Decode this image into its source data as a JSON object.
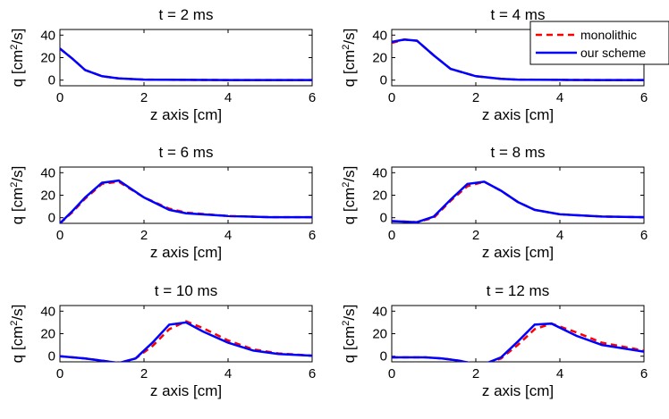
{
  "chart_data": [
    {
      "type": "line",
      "title": "t = 2 ms",
      "xlabel": "z axis [cm]",
      "ylabel_prefix": "q [cm",
      "ylabel_sup": "2",
      "ylabel_suffix": "/s]",
      "xlim": [
        0,
        6
      ],
      "ylim": [
        -5,
        45
      ],
      "xticks": [
        0,
        2,
        4,
        6
      ],
      "yticks": [
        0,
        20,
        40
      ],
      "series": [
        {
          "color": "#ff0000",
          "dash": "dashed",
          "x": [
            0,
            0.3,
            0.6,
            1.0,
            1.4,
            2.0,
            3.0,
            4.0,
            5.0,
            6.0
          ],
          "y": [
            28,
            19,
            9,
            3.5,
            1.5,
            0.5,
            0.2,
            0.1,
            0.1,
            0.1
          ]
        },
        {
          "color": "#0000ff",
          "dash": "solid",
          "x": [
            0,
            0.3,
            0.6,
            1.0,
            1.4,
            2.0,
            3.0,
            4.0,
            5.0,
            6.0
          ],
          "y": [
            28,
            19,
            9,
            3.5,
            1.5,
            0.5,
            0.2,
            0.1,
            0.1,
            0.1
          ]
        }
      ]
    },
    {
      "type": "line",
      "title": "t = 4 ms",
      "xlabel": "z axis [cm]",
      "ylabel_prefix": "q [cm",
      "ylabel_sup": "2",
      "ylabel_suffix": "/s]",
      "xlim": [
        0,
        6
      ],
      "ylim": [
        -5,
        45
      ],
      "xticks": [
        0,
        2,
        4,
        6
      ],
      "yticks": [
        0,
        20,
        40
      ],
      "legend": [
        {
          "label": "monolithic",
          "color": "#ff0000",
          "dash": "dashed"
        },
        {
          "label": "our scheme",
          "color": "#0000ff",
          "dash": "solid"
        }
      ],
      "series": [
        {
          "color": "#ff0000",
          "dash": "dashed",
          "x": [
            0,
            0.3,
            0.6,
            1.0,
            1.4,
            2.0,
            2.6,
            3.0,
            4.0,
            5.0,
            6.0
          ],
          "y": [
            33,
            36,
            35,
            22,
            10,
            3.5,
            1.2,
            0.5,
            0.2,
            0.1,
            0.1
          ]
        },
        {
          "color": "#0000ff",
          "dash": "solid",
          "x": [
            0,
            0.3,
            0.6,
            1.0,
            1.4,
            2.0,
            2.6,
            3.0,
            4.0,
            5.0,
            6.0
          ],
          "y": [
            34,
            36,
            35,
            22,
            10,
            3.5,
            1.2,
            0.5,
            0.2,
            0.1,
            0.1
          ]
        }
      ]
    },
    {
      "type": "line",
      "title": "t = 6 ms",
      "xlabel": "z axis [cm]",
      "ylabel_prefix": "q [cm",
      "ylabel_sup": "2",
      "ylabel_suffix": "/s]",
      "xlim": [
        0,
        6
      ],
      "ylim": [
        -5,
        45
      ],
      "xticks": [
        0,
        2,
        4,
        6
      ],
      "yticks": [
        0,
        20,
        40
      ],
      "series": [
        {
          "color": "#ff0000",
          "dash": "dashed",
          "x": [
            0,
            0.3,
            0.6,
            1.0,
            1.4,
            2.0,
            2.6,
            3.0,
            4.0,
            5.0,
            6.0
          ],
          "y": [
            -5,
            5,
            17,
            30,
            32,
            18,
            8,
            4.5,
            1.5,
            0.5,
            0.5
          ]
        },
        {
          "color": "#0000ff",
          "dash": "solid",
          "x": [
            0,
            0.3,
            0.6,
            1.0,
            1.4,
            2.0,
            2.6,
            3.0,
            4.0,
            5.0,
            6.0
          ],
          "y": [
            -5,
            6,
            18,
            31,
            33,
            18,
            7,
            4,
            1.5,
            0.5,
            0.5
          ]
        }
      ]
    },
    {
      "type": "line",
      "title": "t = 8 ms",
      "xlabel": "z axis [cm]",
      "ylabel_prefix": "q [cm",
      "ylabel_sup": "2",
      "ylabel_suffix": "/s]",
      "xlim": [
        0,
        6
      ],
      "ylim": [
        -5,
        45
      ],
      "xticks": [
        0,
        2,
        4,
        6
      ],
      "yticks": [
        0,
        20,
        40
      ],
      "series": [
        {
          "color": "#ff0000",
          "dash": "dashed",
          "x": [
            0,
            0.6,
            1.0,
            1.4,
            1.8,
            2.2,
            2.6,
            3.0,
            3.4,
            4.0,
            5.0,
            6.0
          ],
          "y": [
            -3,
            -4,
            0,
            15,
            28,
            32,
            24,
            14,
            7,
            3,
            1,
            0.5
          ]
        },
        {
          "color": "#0000ff",
          "dash": "solid",
          "x": [
            0,
            0.6,
            1.0,
            1.4,
            1.8,
            2.2,
            2.6,
            3.0,
            3.4,
            4.0,
            5.0,
            6.0
          ],
          "y": [
            -3,
            -4,
            1,
            16,
            30,
            32,
            24,
            14,
            7,
            3,
            1,
            0.5
          ]
        }
      ]
    },
    {
      "type": "line",
      "title": "t = 10 ms",
      "xlabel": "z axis [cm]",
      "ylabel_prefix": "q [cm",
      "ylabel_sup": "2",
      "ylabel_suffix": "/s]",
      "xlim": [
        0,
        6
      ],
      "ylim": [
        -5,
        45
      ],
      "xticks": [
        0,
        2,
        4,
        6
      ],
      "yticks": [
        0,
        20,
        40
      ],
      "series": [
        {
          "color": "#ff0000",
          "dash": "dashed",
          "x": [
            0,
            0.3,
            0.6,
            1.0,
            1.4,
            1.8,
            2.2,
            2.6,
            3.0,
            3.4,
            4.0,
            4.6,
            5.2,
            6.0
          ],
          "y": [
            0,
            -1,
            -2,
            -4,
            -6,
            -2,
            9,
            24,
            31,
            25,
            14,
            6,
            2.5,
            0.5
          ]
        },
        {
          "color": "#0000ff",
          "dash": "solid",
          "x": [
            0,
            0.3,
            0.6,
            1.0,
            1.4,
            1.8,
            2.2,
            2.6,
            3.0,
            3.4,
            4.0,
            4.6,
            5.2,
            6.0
          ],
          "y": [
            0,
            -1,
            -2,
            -4,
            -6,
            -2,
            12,
            28,
            30,
            22,
            12,
            5,
            2,
            0.5
          ]
        }
      ]
    },
    {
      "type": "line",
      "title": "t = 12 ms",
      "xlabel": "z axis [cm]",
      "ylabel_prefix": "q [cm",
      "ylabel_sup": "2",
      "ylabel_suffix": "/s]",
      "xlim": [
        0,
        6
      ],
      "ylim": [
        -5,
        45
      ],
      "xticks": [
        0,
        2,
        4,
        6
      ],
      "yticks": [
        0,
        20,
        40
      ],
      "series": [
        {
          "color": "#ff0000",
          "dash": "dashed",
          "x": [
            0,
            0.4,
            0.8,
            1.2,
            1.6,
            2.0,
            2.2,
            2.6,
            3.0,
            3.4,
            3.8,
            4.4,
            5.0,
            6.0
          ],
          "y": [
            -1,
            -1,
            -1,
            -2,
            -4,
            -7,
            -7,
            -2,
            10,
            24,
            29,
            21,
            12,
            5
          ]
        },
        {
          "color": "#0000ff",
          "dash": "solid",
          "x": [
            0,
            0.4,
            0.8,
            1.2,
            1.6,
            2.0,
            2.2,
            2.6,
            3.0,
            3.4,
            3.8,
            4.4,
            5.0,
            6.0
          ],
          "y": [
            -1,
            -1,
            -1,
            -2,
            -4,
            -7,
            -7,
            -1,
            13,
            28,
            29,
            18,
            10,
            4
          ]
        }
      ]
    }
  ]
}
